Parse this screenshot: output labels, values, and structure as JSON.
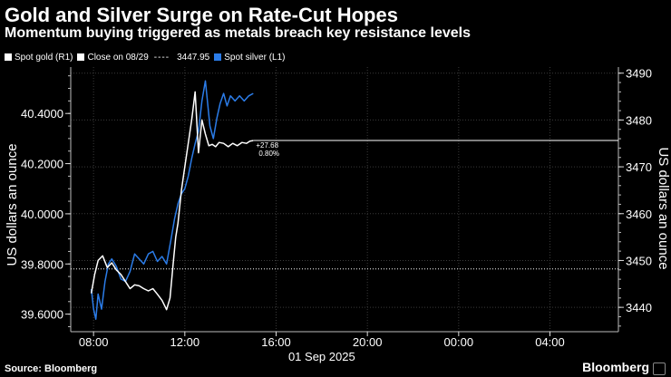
{
  "header": {
    "title": "Gold and Silver Surge on Rate-Cut Hopes",
    "subtitle": "Momentum buying triggered as metals breach key resistance levels"
  },
  "legend": {
    "gold": "Spot gold (R1)",
    "close": "Close on 08/29",
    "close_dashes": "----",
    "close_value": "3447.95",
    "silver": "Spot silver (L1)"
  },
  "footer": {
    "source": "Source: Bloomberg",
    "brand": "Bloomberg"
  },
  "colors": {
    "background": "#000000",
    "gold": "#ffffff",
    "silver": "#2b7ce8",
    "grid": "#3a3a3a"
  },
  "chart_data": {
    "type": "line",
    "title": "Gold and Silver Surge on Rate-Cut Hopes",
    "subtitle": "Momentum buying triggered as metals breach key resistance levels",
    "x_unit": "hours since 01 Sep 2025 00:00",
    "xlim": [
      7,
      31
    ],
    "xticks": [
      {
        "x": 8,
        "label": "08:00"
      },
      {
        "x": 12,
        "label": "12:00"
      },
      {
        "x": 16,
        "label": "16:00"
      },
      {
        "x": 20,
        "label": "20:00"
      },
      {
        "x": 24,
        "label": "00:00"
      },
      {
        "x": 28,
        "label": "04:00"
      }
    ],
    "date_label": {
      "x": 18,
      "label": "01 Sep 2025"
    },
    "left_axis": {
      "label": "US dollars an ounce",
      "ylim": [
        39.53,
        40.585
      ],
      "ticks": [
        "39.6000",
        "39.8000",
        "40.0000",
        "40.2000",
        "40.4000"
      ],
      "tick_values": [
        39.6,
        39.8,
        40.0,
        40.2,
        40.4
      ]
    },
    "right_axis": {
      "label": "US dollars an ounce",
      "ylim": [
        3434.8,
        3491.3
      ],
      "ticks": [
        "3440",
        "3450",
        "3460",
        "3470",
        "3480",
        "3490"
      ],
      "tick_values": [
        3440,
        3450,
        3460,
        3470,
        3480,
        3490
      ]
    },
    "reference_line": {
      "name": "Close on 08/29",
      "axis": "left",
      "value": 39.78,
      "style": "dotted"
    },
    "last_level_line": {
      "axis": "right",
      "value": 3475.63
    },
    "annotation": {
      "change": "+27.68",
      "pct": "0.80%"
    },
    "series": [
      {
        "name": "Spot silver (L1)",
        "axis": "left",
        "color": "#2b7ce8",
        "x": [
          7.9,
          8.0,
          8.1,
          8.2,
          8.35,
          8.5,
          8.65,
          8.8,
          9.0,
          9.2,
          9.4,
          9.6,
          9.8,
          10.0,
          10.2,
          10.4,
          10.6,
          10.8,
          11.0,
          11.2,
          11.4,
          11.55,
          11.7,
          11.85,
          12.0,
          12.15,
          12.3,
          12.45,
          12.6,
          12.75,
          12.9,
          13.0,
          13.1,
          13.25,
          13.4,
          13.55,
          13.7,
          13.85,
          14.0,
          14.2,
          14.4,
          14.6,
          14.8,
          15.0
        ],
        "y": [
          39.7,
          39.62,
          39.58,
          39.68,
          39.62,
          39.73,
          39.8,
          39.82,
          39.79,
          39.74,
          39.73,
          39.77,
          39.84,
          39.82,
          39.8,
          39.84,
          39.85,
          39.81,
          39.83,
          39.8,
          39.9,
          39.98,
          40.04,
          40.08,
          40.1,
          40.15,
          40.22,
          40.28,
          40.33,
          40.45,
          40.53,
          40.44,
          40.35,
          40.3,
          40.38,
          40.44,
          40.48,
          40.43,
          40.47,
          40.45,
          40.47,
          40.45,
          40.47,
          40.48
        ]
      },
      {
        "name": "Spot gold (R1)",
        "axis": "right",
        "color": "#ffffff",
        "x": [
          7.9,
          8.05,
          8.2,
          8.4,
          8.6,
          8.8,
          9.0,
          9.2,
          9.4,
          9.6,
          9.8,
          10.0,
          10.2,
          10.4,
          10.6,
          10.8,
          11.0,
          11.2,
          11.35,
          11.5,
          11.6,
          11.7,
          11.85,
          12.0,
          12.15,
          12.3,
          12.45,
          12.6,
          12.75,
          12.9,
          13.05,
          13.2,
          13.35,
          13.5,
          13.7,
          13.9,
          14.1,
          14.3,
          14.5,
          14.7,
          14.85,
          15.0
        ],
        "y": [
          3443.0,
          3447.0,
          3450.0,
          3451.0,
          3448.5,
          3449.5,
          3448.0,
          3447.0,
          3445.5,
          3444.0,
          3444.8,
          3444.6,
          3444.0,
          3443.5,
          3444.0,
          3442.8,
          3441.5,
          3439.5,
          3442.0,
          3450.0,
          3455.0,
          3458.0,
          3465.0,
          3470.0,
          3475.0,
          3480.0,
          3486.0,
          3473.0,
          3480.0,
          3477.0,
          3474.5,
          3474.8,
          3474.3,
          3475.2,
          3475.0,
          3474.3,
          3475.0,
          3474.5,
          3475.2,
          3475.0,
          3475.5,
          3475.6
        ]
      }
    ]
  }
}
